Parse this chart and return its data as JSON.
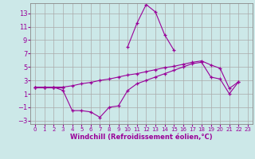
{
  "title": "Windchill (Refroidissement éolien,°C)",
  "background_color": "#cce8e8",
  "grid_color": "#aaaaaa",
  "line_color": "#990099",
  "x_vals": [
    0,
    1,
    2,
    3,
    4,
    5,
    6,
    7,
    8,
    9,
    10,
    11,
    12,
    13,
    14,
    15,
    16,
    17,
    18,
    19,
    20,
    21,
    22,
    23
  ],
  "line_peak": [
    2.0,
    2.0,
    2.0,
    2.0,
    null,
    null,
    null,
    null,
    null,
    null,
    8.0,
    11.5,
    14.3,
    13.2,
    9.8,
    7.5,
    null,
    null,
    null,
    null,
    null,
    null,
    null,
    null
  ],
  "line_upper": [
    2.0,
    2.0,
    2.0,
    2.0,
    2.2,
    2.5,
    2.7,
    3.0,
    3.2,
    3.5,
    3.8,
    4.0,
    4.3,
    4.6,
    4.9,
    5.1,
    5.4,
    5.7,
    5.9,
    5.3,
    4.8,
    1.8,
    2.8,
    null
  ],
  "line_lower": [
    2.0,
    2.0,
    2.0,
    1.5,
    -1.5,
    -1.5,
    -1.7,
    -2.5,
    -1.0,
    -0.8,
    1.5,
    2.5,
    3.0,
    3.5,
    4.0,
    4.5,
    5.0,
    5.5,
    5.7,
    3.5,
    3.2,
    1.0,
    2.8,
    null
  ],
  "ylim": [
    -3.5,
    14.5
  ],
  "yticks": [
    -3,
    -1,
    1,
    3,
    5,
    7,
    9,
    11,
    13
  ],
  "xlim": [
    -0.5,
    23.5
  ],
  "figwidth": 3.2,
  "figheight": 2.0,
  "dpi": 100
}
